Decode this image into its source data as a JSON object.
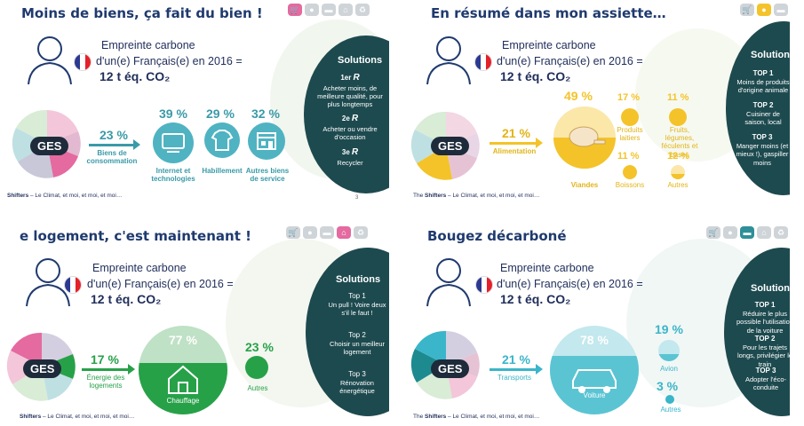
{
  "common": {
    "empreinte_l1": "Empreinte carbone",
    "empreinte_l2": "d'un(e) Français(e) en 2016 =",
    "empreinte_l3": "12 t éq. CO₂",
    "ges": "GES",
    "footer_brand": "Shifters",
    "footer_text": " – Le Climat, et moi, et moi, et moi…",
    "footer_prefix": "The ",
    "flag_colors": [
      "#2b3990",
      "#ffffff",
      "#e4202a"
    ]
  },
  "slide1": {
    "title": "Moins de biens, ça fait du bien !",
    "arrow_pct": "23 %",
    "arrow_label": "Biens de consommation",
    "items": [
      {
        "pct": "39 %",
        "label": "Internet et technologies"
      },
      {
        "pct": "29 %",
        "label": "Habillement"
      },
      {
        "pct": "32 %",
        "label": "Autres biens de service"
      }
    ],
    "solutions_title": "Solutions",
    "solutions": [
      {
        "rank": "1er",
        "text": "Acheter moins, de meilleure qualité, pour plus longtemps"
      },
      {
        "rank": "2e",
        "text": "Acheter ou vendre d'occasion"
      },
      {
        "rank": "3e",
        "text": "Recycler"
      }
    ],
    "page": "3",
    "accent": "#3a9aa8"
  },
  "slide2": {
    "title": "En résumé dans mon assiette…",
    "arrow_pct": "21 %",
    "arrow_label": "Alimentation",
    "main_pct": "49 %",
    "main_label": "Viandes",
    "items": [
      {
        "pct": "17 %",
        "label": "Produits laitiers"
      },
      {
        "pct": "11 %",
        "label": "Fruits, légumes, féculents et bases"
      },
      {
        "pct": "11 %",
        "label": "Boissons"
      },
      {
        "pct": "12 %",
        "label": "Autres"
      }
    ],
    "solutions_title": "Solutions",
    "solutions": [
      {
        "rank": "TOP 1",
        "text": "Moins de produits d'origine animale"
      },
      {
        "rank": "TOP 2",
        "text": "Cuisiner de saison, local"
      },
      {
        "rank": "TOP 3",
        "text": "Manger moins (et mieux !), gaspiller moins"
      }
    ],
    "accent": "#f4c329"
  },
  "slide3": {
    "title": "e logement, c'est maintenant !",
    "arrow_pct": "17 %",
    "arrow_label": "Énergie des logements",
    "main_pct": "77 %",
    "main_label": "Chauffage",
    "other_pct": "23 %",
    "other_label": "Autres",
    "solutions_title": "Solutions",
    "solutions": [
      {
        "rank": "Top 1",
        "text": "Un pull ! Voire deux s'il le faut !"
      },
      {
        "rank": "Top 2",
        "text": "Choisir un meilleur logement"
      },
      {
        "rank": "Top 3",
        "text": "Rénovation énergétique"
      }
    ],
    "accent": "#27a148"
  },
  "slide4": {
    "title": "Bougez décarboné",
    "arrow_pct": "21 %",
    "arrow_label": "Transports",
    "main_pct": "78 %",
    "main_label": "Voiture",
    "items": [
      {
        "pct": "19 %",
        "label": "Avion"
      },
      {
        "pct": "3 %",
        "label": "Autres"
      }
    ],
    "solutions_title": "Solutions",
    "solutions": [
      {
        "rank": "TOP 1",
        "text": "Réduire le plus possible l'utilisation de la voiture"
      },
      {
        "rank": "TOP 2",
        "text": "Pour les trajets longs, privilégier le train"
      },
      {
        "rank": "TOP 3",
        "text": "Adopter l'éco-conduite"
      }
    ],
    "accent": "#3ab5c9"
  }
}
